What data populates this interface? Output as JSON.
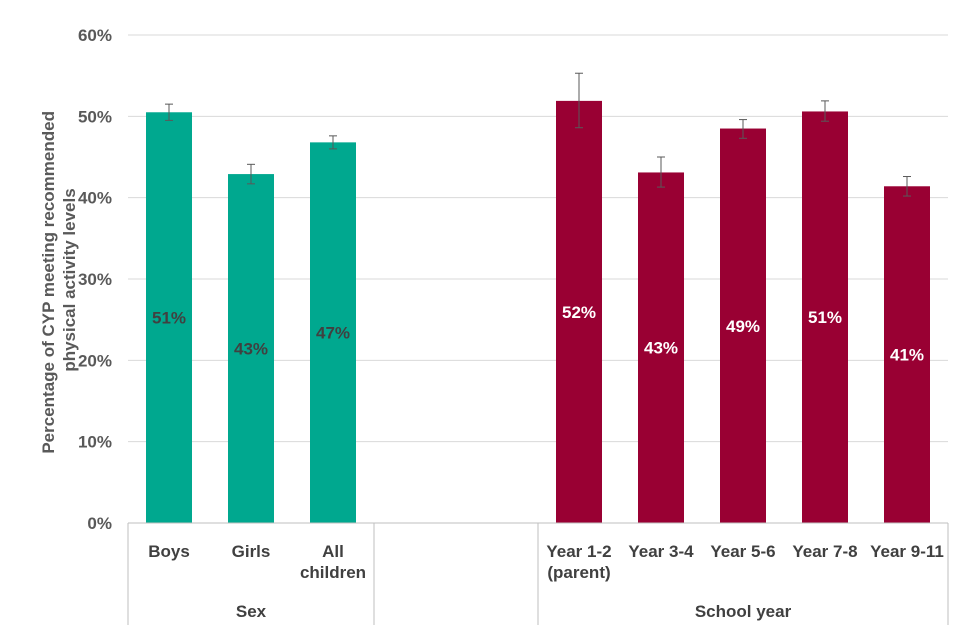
{
  "chart_data": {
    "type": "bar",
    "ylabel_lines": [
      "Percentage of CYP meeting recommended",
      "physical activity levels"
    ],
    "ylim": [
      0,
      60
    ],
    "yticks": [
      0,
      10,
      20,
      30,
      40,
      50,
      60
    ],
    "ytick_labels": [
      "0%",
      "10%",
      "20%",
      "30%",
      "40%",
      "50%",
      "60%"
    ],
    "grid": true,
    "groups": [
      {
        "name": "Sex",
        "color": "#00A88F",
        "label_color": "#404040",
        "bars": [
          {
            "category": [
              "Boys"
            ],
            "value": 50.5,
            "err_low": 49.5,
            "err_high": 51.5,
            "label": "51%"
          },
          {
            "category": [
              "Girls"
            ],
            "value": 42.9,
            "err_low": 41.7,
            "err_high": 44.1,
            "label": "43%"
          },
          {
            "category": [
              "All",
              "children"
            ],
            "value": 46.8,
            "err_low": 46.0,
            "err_high": 47.6,
            "label": "47%"
          }
        ]
      },
      {
        "name": "School year",
        "color": "#990033",
        "label_color": "#ffffff",
        "bars": [
          {
            "category": [
              "Year 1-2",
              "(parent)"
            ],
            "value": 51.9,
            "err_low": 48.6,
            "err_high": 55.3,
            "label": "52%"
          },
          {
            "category": [
              "Year 3-4"
            ],
            "value": 43.1,
            "err_low": 41.3,
            "err_high": 45.0,
            "label": "43%"
          },
          {
            "category": [
              "Year 5-6"
            ],
            "value": 48.5,
            "err_low": 47.3,
            "err_high": 49.6,
            "label": "49%"
          },
          {
            "category": [
              "Year 7-8"
            ],
            "value": 50.6,
            "err_low": 49.4,
            "err_high": 51.9,
            "label": "51%"
          },
          {
            "category": [
              "Year 9-11"
            ],
            "value": 41.4,
            "err_low": 40.2,
            "err_high": 42.6,
            "label": "41%"
          }
        ]
      }
    ]
  }
}
